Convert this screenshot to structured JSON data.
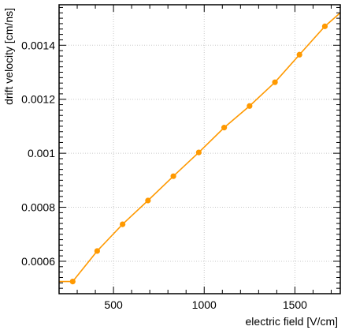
{
  "chart_data": {
    "type": "line",
    "title": "",
    "xlabel": "electric field [V/cm]",
    "ylabel": "drift velocity [cm/ns]",
    "xlim": [
      200,
      1750
    ],
    "ylim": [
      0.00048,
      0.00155
    ],
    "grid": true,
    "xticks": [
      500,
      1000,
      1500
    ],
    "xtick_labels": [
      "500",
      "1000",
      "1500"
    ],
    "yticks": [
      0.0006,
      0.0008,
      0.001,
      0.0012,
      0.0014
    ],
    "ytick_labels": [
      "0.0006",
      "0.0008",
      "0.001",
      "0.0012",
      "0.0014"
    ],
    "line_color": "#ff9900",
    "series": [
      {
        "line_x": [
          200,
          275,
          410,
          550,
          690,
          830,
          970,
          1110,
          1250,
          1390,
          1525,
          1665,
          1750
        ],
        "line_y": [
          0.000525,
          0.000525,
          0.000638,
          0.000737,
          0.000825,
          0.000915,
          0.001003,
          0.001095,
          0.001175,
          0.001263,
          0.001365,
          0.00147,
          0.00152
        ],
        "marker_x": [
          275,
          410,
          550,
          690,
          830,
          970,
          1110,
          1250,
          1390,
          1525,
          1665
        ],
        "marker_y": [
          0.000525,
          0.000638,
          0.000737,
          0.000825,
          0.000915,
          0.001003,
          0.001095,
          0.001175,
          0.001263,
          0.001365,
          0.00147
        ]
      }
    ]
  }
}
